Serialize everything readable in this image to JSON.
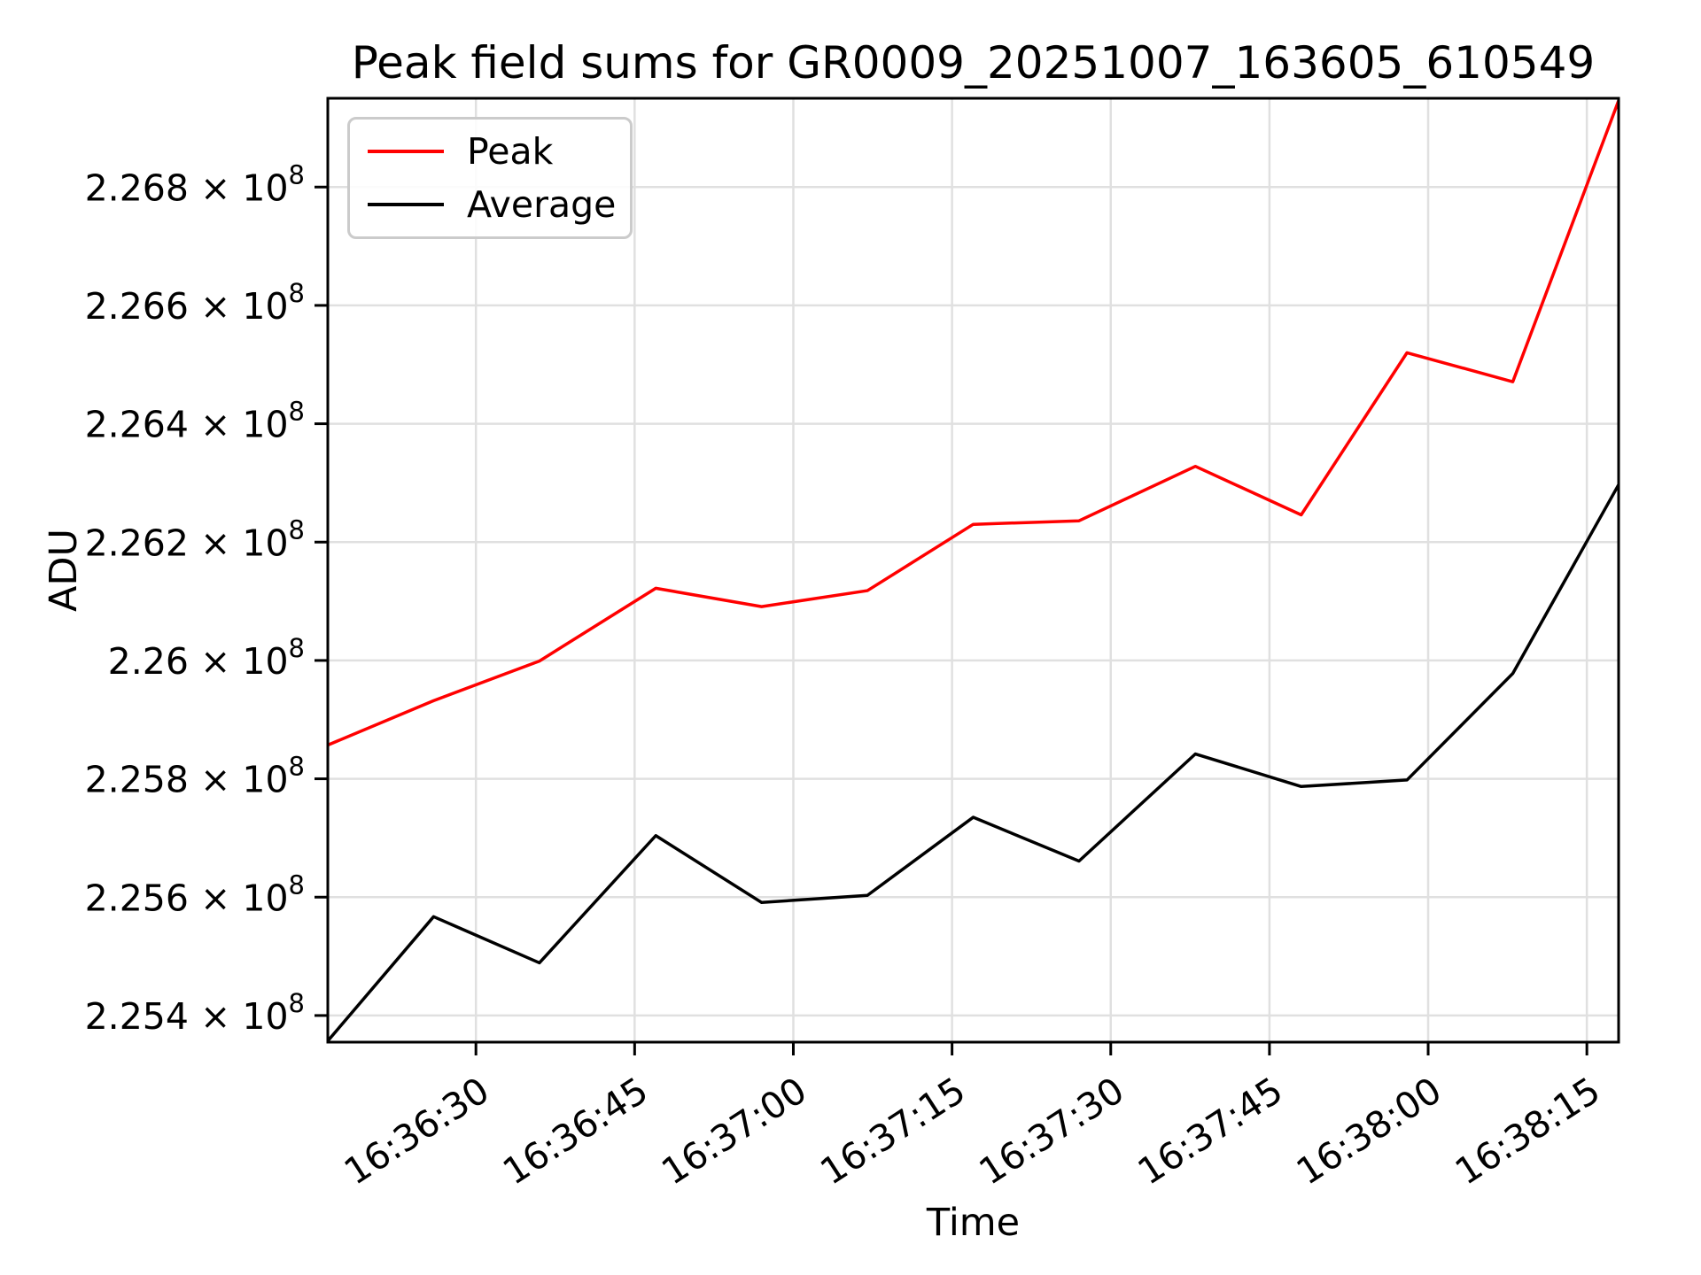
{
  "chart_data": {
    "type": "line",
    "title": "Peak field sums for GR0009_20251007_163605_610549",
    "xlabel": "Time",
    "ylabel": "ADU",
    "grid": true,
    "legend_position": "upper left",
    "x": [
      "16:36:16",
      "16:36:26",
      "16:36:36",
      "16:36:47",
      "16:36:57",
      "16:37:07",
      "16:37:17",
      "16:37:27",
      "16:37:38",
      "16:37:48",
      "16:37:58",
      "16:38:08",
      "16:38:18"
    ],
    "series": [
      {
        "name": "Peak",
        "color": "#ff0000",
        "values": [
          225857000,
          225932000,
          225999000,
          226122000,
          226091000,
          226118000,
          226230000,
          226236000,
          226328000,
          226246000,
          226520000,
          226471000,
          226946000
        ]
      },
      {
        "name": "Average",
        "color": "#000000",
        "values": [
          225357000,
          225567000,
          225489000,
          225704000,
          225591000,
          225603000,
          225735000,
          225661000,
          225842000,
          225787000,
          225798000,
          225978000,
          226297000
        ]
      }
    ],
    "x_ticks": [
      "16:36:30",
      "16:36:45",
      "16:37:00",
      "16:37:15",
      "16:37:30",
      "16:37:45",
      "16:38:00",
      "16:38:15"
    ],
    "y_ticks": [
      {
        "text": "2.254 × 10",
        "sup": "8",
        "value": 225400000
      },
      {
        "text": "2.256 × 10",
        "sup": "8",
        "value": 225600000
      },
      {
        "text": "2.258 × 10",
        "sup": "8",
        "value": 225800000
      },
      {
        "text": "2.26 × 10",
        "sup": "8",
        "value": 226000000
      },
      {
        "text": "2.262 × 10",
        "sup": "8",
        "value": 226200000
      },
      {
        "text": "2.264 × 10",
        "sup": "8",
        "value": 226400000
      },
      {
        "text": "2.266 × 10",
        "sup": "8",
        "value": 226600000
      },
      {
        "text": "2.268 × 10",
        "sup": "8",
        "value": 226800000
      }
    ],
    "xlim": [
      "16:36:16",
      "16:38:18"
    ],
    "ylim": [
      225355000,
      226950000
    ],
    "grid_color": "#e0e0e0"
  }
}
